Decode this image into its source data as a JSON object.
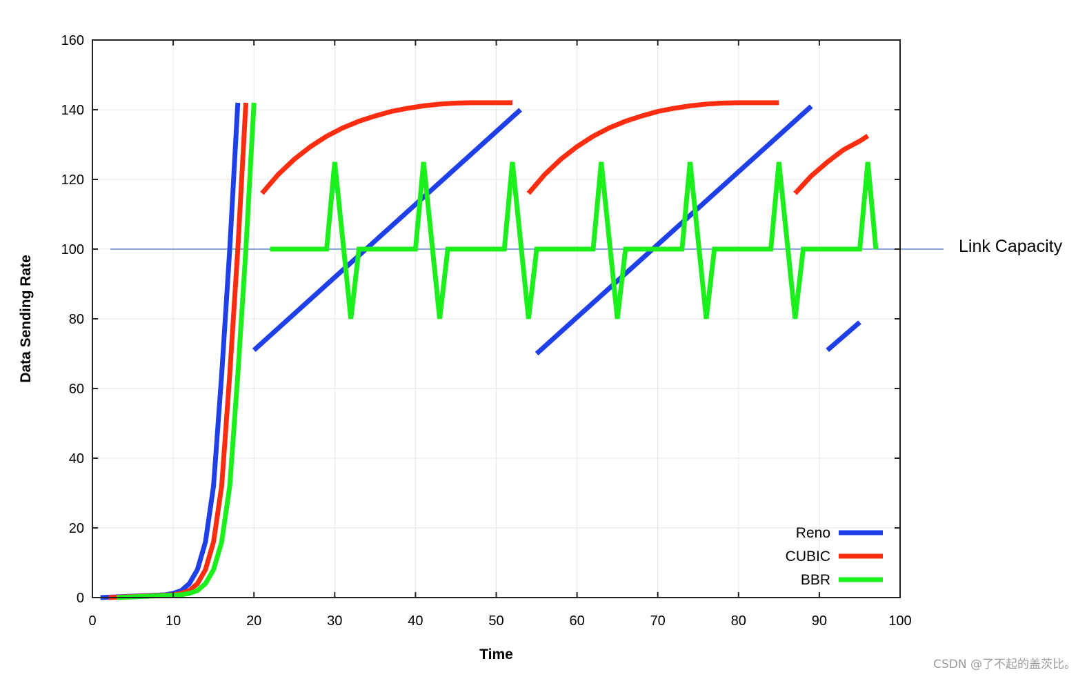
{
  "chart_data": {
    "type": "line",
    "title": "",
    "xlabel": "Time",
    "ylabel": "Data Sending Rate",
    "xlim": [
      0,
      100
    ],
    "ylim": [
      0,
      160
    ],
    "xticks": [
      0,
      10,
      20,
      30,
      40,
      50,
      60,
      70,
      80,
      90,
      100
    ],
    "yticks": [
      0,
      20,
      40,
      60,
      80,
      100,
      120,
      140,
      160
    ],
    "grid": true,
    "legend_position": "bottom-right",
    "reference_line": {
      "label": "Link Capacity",
      "y": 100,
      "color": "#4472c4"
    },
    "series": [
      {
        "name": "Reno",
        "color": "#1f3fe8",
        "segments": [
          [
            [
              1,
              0
            ],
            [
              3,
              0.2
            ],
            [
              5,
              0.4
            ],
            [
              7,
              0.6
            ],
            [
              9,
              0.8
            ],
            [
              10,
              1.2
            ],
            [
              11,
              2
            ],
            [
              12,
              4
            ],
            [
              13,
              8
            ],
            [
              14,
              16
            ],
            [
              15,
              32
            ],
            [
              16,
              64
            ],
            [
              17,
              100
            ],
            [
              18,
              142
            ]
          ],
          [
            [
              20,
              71
            ],
            [
              53,
              140
            ]
          ],
          [
            [
              55,
              70
            ],
            [
              89,
              141
            ]
          ],
          [
            [
              91,
              71
            ],
            [
              95,
              79
            ]
          ]
        ]
      },
      {
        "name": "CUBIC",
        "color": "#ff2d0f",
        "segments": [
          [
            [
              2,
              0
            ],
            [
              4,
              0.2
            ],
            [
              6,
              0.4
            ],
            [
              8,
              0.6
            ],
            [
              10,
              0.8
            ],
            [
              11,
              1.2
            ],
            [
              12,
              2
            ],
            [
              13,
              4
            ],
            [
              14,
              8
            ],
            [
              15,
              16
            ],
            [
              16,
              32
            ],
            [
              17,
              64
            ],
            [
              18,
              100
            ],
            [
              19,
              142
            ]
          ],
          [
            [
              21,
              116
            ],
            [
              23,
              121.4
            ],
            [
              25,
              125.8
            ],
            [
              27,
              129.4
            ],
            [
              29,
              132.4
            ],
            [
              31,
              134.8
            ],
            [
              33,
              136.7
            ],
            [
              35,
              138.2
            ],
            [
              37,
              139.5
            ],
            [
              39,
              140.4
            ],
            [
              41,
              141.1
            ],
            [
              43,
              141.6
            ],
            [
              45,
              141.9
            ],
            [
              47,
              142
            ],
            [
              52,
              142
            ]
          ],
          [
            [
              54,
              116
            ],
            [
              56,
              121.4
            ],
            [
              58,
              125.8
            ],
            [
              60,
              129.4
            ],
            [
              62,
              132.4
            ],
            [
              64,
              134.8
            ],
            [
              66,
              136.7
            ],
            [
              68,
              138.2
            ],
            [
              70,
              139.5
            ],
            [
              72,
              140.4
            ],
            [
              74,
              141.1
            ],
            [
              76,
              141.6
            ],
            [
              78,
              141.9
            ],
            [
              80,
              142
            ],
            [
              85,
              142
            ]
          ],
          [
            [
              87,
              116
            ],
            [
              89,
              121
            ],
            [
              91,
              125
            ],
            [
              93,
              128.5
            ],
            [
              95,
              131
            ],
            [
              96,
              132.5
            ]
          ]
        ]
      },
      {
        "name": "BBR",
        "color": "#1cf01c",
        "segments": [
          [
            [
              3,
              0
            ],
            [
              5,
              0.2
            ],
            [
              7,
              0.4
            ],
            [
              9,
              0.6
            ],
            [
              11,
              0.8
            ],
            [
              12,
              1.2
            ],
            [
              13,
              2
            ],
            [
              14,
              4
            ],
            [
              15,
              8
            ],
            [
              16,
              16
            ],
            [
              17,
              32
            ],
            [
              18,
              64
            ],
            [
              19,
              100
            ],
            [
              20,
              142
            ]
          ],
          [
            [
              22,
              100
            ],
            [
              29,
              100
            ],
            [
              30,
              125
            ],
            [
              32,
              80
            ],
            [
              33,
              100
            ],
            [
              40,
              100
            ],
            [
              41,
              125
            ],
            [
              43,
              80
            ],
            [
              44,
              100
            ],
            [
              51,
              100
            ],
            [
              52,
              125
            ],
            [
              54,
              80
            ],
            [
              55,
              100
            ],
            [
              62,
              100
            ],
            [
              63,
              125
            ],
            [
              65,
              80
            ],
            [
              66,
              100
            ],
            [
              73,
              100
            ],
            [
              74,
              125
            ],
            [
              76,
              80
            ],
            [
              77,
              100
            ],
            [
              84,
              100
            ],
            [
              85,
              125
            ],
            [
              87,
              80
            ],
            [
              88,
              100
            ],
            [
              95,
              100
            ],
            [
              96,
              125
            ],
            [
              97,
              100
            ]
          ]
        ]
      }
    ]
  },
  "watermark": "CSDN @了不起的盖茨比。"
}
